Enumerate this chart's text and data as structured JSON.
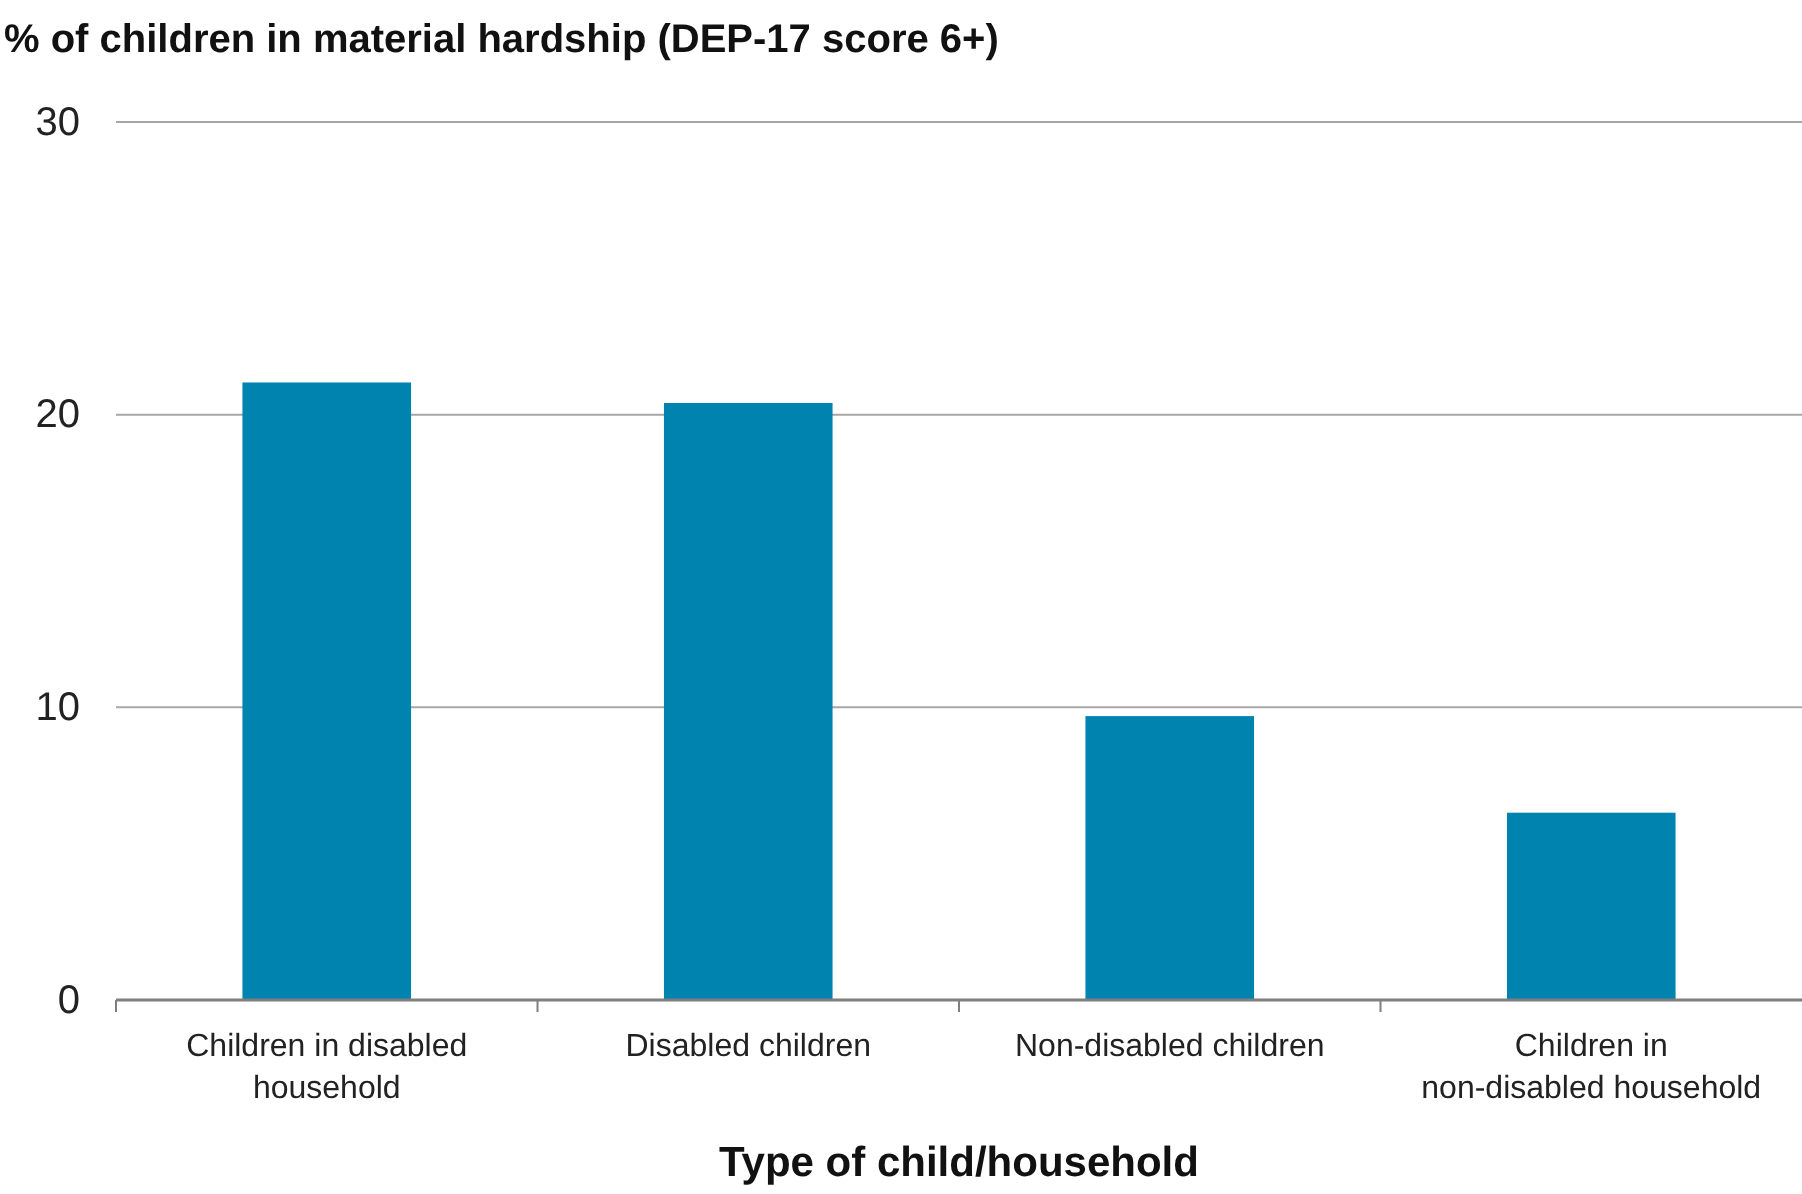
{
  "chart_data": {
    "type": "bar",
    "ylabel": "% of children in material hardship (DEP-17 score 6+)",
    "xlabel": "Type of child/household",
    "categories": [
      "Children in disabled household",
      "Disabled children",
      "Non-disabled children",
      "Children in non-disabled household"
    ],
    "values": [
      21.1,
      20.4,
      9.7,
      6.4
    ],
    "color": "#0083ae",
    "ylim": [
      0,
      30
    ],
    "yticks": [
      0,
      10,
      20,
      30
    ],
    "grid": "y"
  }
}
